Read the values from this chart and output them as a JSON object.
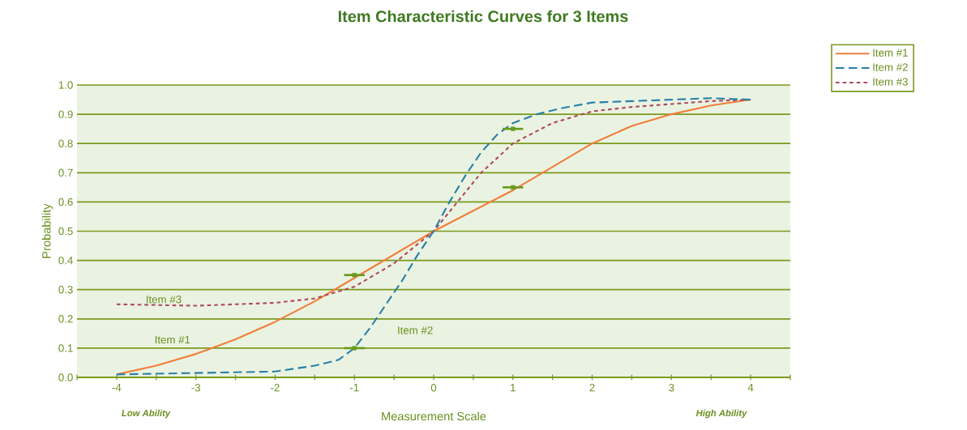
{
  "chart_data": {
    "type": "line",
    "title": "Item Characteristic Curves for 3 Items",
    "xlabel": "Measurement Scale",
    "ylabel": "Probability",
    "xlim": [
      -4.5,
      4.5
    ],
    "xticks": [
      {
        "value": -4.5,
        "label": null
      },
      -4,
      {
        "value": -3.5,
        "label": null
      },
      -3,
      {
        "value": -2.5,
        "label": null
      },
      -2,
      {
        "value": -1.5,
        "label": null
      },
      -1,
      {
        "value": -0.5,
        "label": null
      },
      0,
      {
        "value": 0.5,
        "label": null
      },
      1,
      {
        "value": 1.5,
        "label": null
      },
      2,
      {
        "value": 2.5,
        "label": null
      },
      3,
      {
        "value": 3.5,
        "label": null
      },
      4,
      {
        "value": 4.5,
        "label": null
      }
    ],
    "ylim": [
      0,
      1
    ],
    "yticks": [
      {
        "value": 0,
        "label": "0.0"
      },
      0.1,
      0.2,
      0.3,
      0.4,
      0.5,
      0.6,
      0.7,
      0.8,
      0.9,
      {
        "value": 1,
        "label": "1.0"
      }
    ],
    "grid": "y",
    "legend": "top right",
    "series": [
      {
        "name": "Item #1",
        "color": "#f07f3c",
        "line_style": "solid",
        "x": [
          -4,
          -3.5,
          -3,
          -2.5,
          -2,
          -1.5,
          -1,
          -0.5,
          0,
          0.5,
          1,
          1.5,
          2,
          2.5,
          3,
          3.5,
          4
        ],
        "values": [
          0.01,
          0.04,
          0.08,
          0.13,
          0.19,
          0.26,
          0.34,
          0.42,
          0.5,
          0.57,
          0.64,
          0.72,
          0.8,
          0.86,
          0.9,
          0.93,
          0.95
        ]
      },
      {
        "name": "Item #2",
        "color": "#2a80a8",
        "line_style": "dashed",
        "x": [
          -4,
          -3,
          -2,
          -1.5,
          -1.2,
          -1,
          -0.8,
          -0.6,
          -0.4,
          -0.2,
          0,
          0.2,
          0.4,
          0.6,
          0.8,
          1,
          1.3,
          1.6,
          2,
          2.5,
          3,
          3.5,
          4
        ],
        "values": [
          0.01,
          0.015,
          0.02,
          0.04,
          0.06,
          0.1,
          0.17,
          0.25,
          0.33,
          0.42,
          0.5,
          0.6,
          0.69,
          0.77,
          0.83,
          0.87,
          0.9,
          0.92,
          0.94,
          0.945,
          0.95,
          0.955,
          0.95
        ]
      },
      {
        "name": "Item #3",
        "color": "#b04a5e",
        "line_style": "dotted",
        "x": [
          -4,
          -3,
          -2.5,
          -2,
          -1.5,
          -1,
          -0.5,
          0,
          0.3,
          0.6,
          1,
          1.5,
          2,
          2.5,
          3,
          3.5,
          4
        ],
        "values": [
          0.25,
          0.245,
          0.25,
          0.255,
          0.27,
          0.31,
          0.39,
          0.5,
          0.6,
          0.7,
          0.8,
          0.87,
          0.91,
          0.925,
          0.935,
          0.945,
          0.95
        ]
      },
      {
        "type": "scatter",
        "color": "#6b9a1e",
        "marker": "square",
        "x": [
          -1,
          -1,
          1,
          1
        ],
        "values": [
          0.35,
          0.1,
          0.85,
          0.65
        ],
        "xerrors": [
          0.13,
          0.13,
          0.13,
          0.13
        ]
      }
    ],
    "annotations": [
      "Low Ability",
      "High Ability"
    ]
  }
}
